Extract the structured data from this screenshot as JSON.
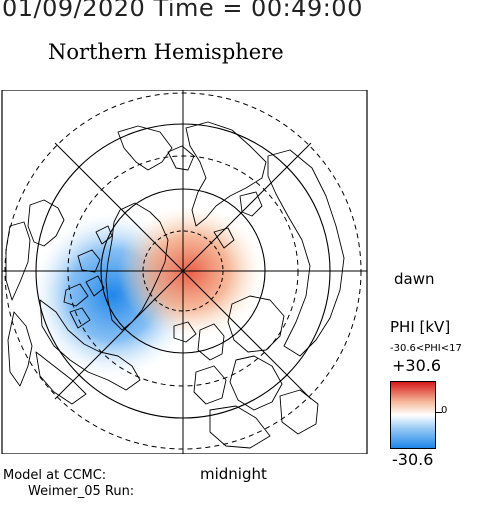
{
  "header": {
    "timestamp": "01/09/2020 Time = 00:49:00",
    "title": "Northern Hemisphere"
  },
  "labels": {
    "dawn": "dawn",
    "midnight": "midnight",
    "model_line1": "Model at CCMC:",
    "model_line2": "Weimer_05 Run:"
  },
  "colorbar": {
    "title": "PHI [kV]",
    "range_text": "-30.6<PHI<17",
    "max_label": "+30.6",
    "zero_label": "0",
    "min_label": "-30.6",
    "colors": [
      "#d7191c",
      "#f5b99a",
      "#ffffff",
      "#9bcbf5",
      "#1d86ea"
    ]
  },
  "potential": {
    "min_kv": -30.6,
    "max_kv": 17,
    "positive_cell_color": "#e8573f",
    "negative_cell_color": "#1f86ea"
  }
}
